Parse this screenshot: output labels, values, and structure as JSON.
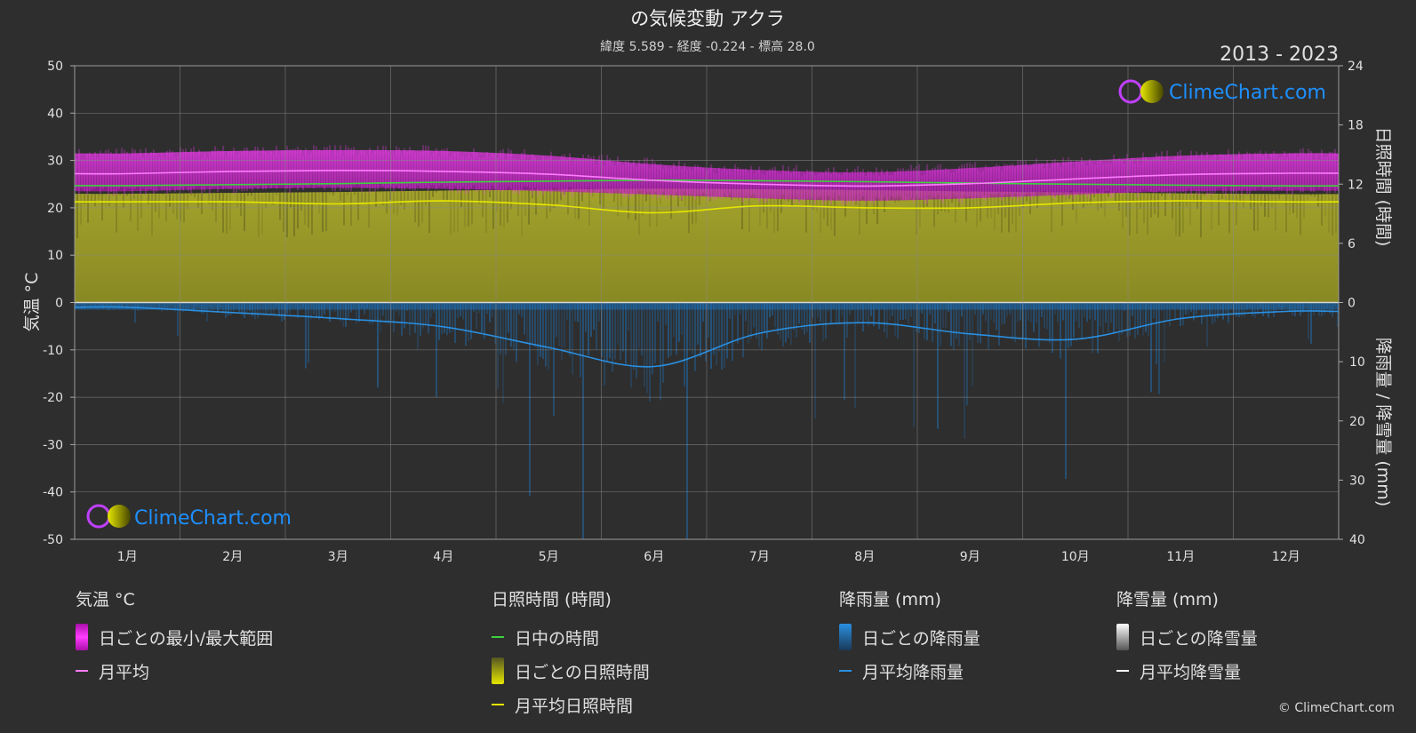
{
  "header": {
    "title": "の気候変動 アクラ",
    "subtitle": "緯度 5.589 - 経度 -0.224 - 標高 28.0",
    "period": "2013 - 2023"
  },
  "logo": {
    "text": "ClimeChart.com"
  },
  "copyright": "© ClimeChart.com",
  "colors": {
    "background": "#2e2e2e",
    "temp_range": "#d21ed2",
    "temp_mean": "#ff7bff",
    "daylight": "#3cd23c",
    "sunshine_fill": "#9a9a2a",
    "sunshine_mean": "#e6e600",
    "rain": "#1f6fb4",
    "rain_mean": "#2a8fe0",
    "snow_mean": "#ffffff",
    "logo_text": "#1e90ff"
  },
  "chart_data": {
    "type": "area",
    "title": "の気候変動 アクラ",
    "categories": [
      "1月",
      "2月",
      "3月",
      "4月",
      "5月",
      "6月",
      "7月",
      "8月",
      "9月",
      "10月",
      "11月",
      "12月"
    ],
    "axes": {
      "left": {
        "label": "気温 °C",
        "ticks": [
          "50",
          "40",
          "30",
          "20",
          "10",
          "0",
          "-10",
          "-20",
          "-30",
          "-40",
          "-50"
        ],
        "ylim": [
          -50,
          50
        ]
      },
      "right_top": {
        "label": "日照時間 (時間)",
        "ticks": [
          "24",
          "18",
          "12",
          "6",
          "0"
        ],
        "ylim": [
          0,
          24
        ]
      },
      "right_bottom": {
        "label": "降雨量 / 降雪量 (mm)",
        "ticks": [
          "0",
          "10",
          "20",
          "30",
          "40"
        ],
        "ylim": [
          0,
          40
        ]
      }
    },
    "grid": true,
    "series": [
      {
        "name": "月平均",
        "group": "気温 °C",
        "axis": "left",
        "values": [
          27.2,
          27.7,
          27.9,
          27.7,
          27.1,
          25.8,
          25.0,
          24.6,
          25.1,
          26.1,
          27.0,
          27.3
        ]
      },
      {
        "name": "日ごとの最小/最大範囲",
        "group": "気温 °C",
        "axis": "left",
        "lower": [
          23.5,
          24.0,
          24.2,
          24.0,
          23.5,
          22.8,
          22.0,
          21.5,
          22.0,
          22.8,
          23.5,
          23.6
        ],
        "upper": [
          31.5,
          32.0,
          32.2,
          32.0,
          31.0,
          29.2,
          28.0,
          27.5,
          28.4,
          29.8,
          31.0,
          31.5
        ]
      },
      {
        "name": "日中の時間",
        "group": "日照時間 (時間)",
        "axis": "right_top",
        "values": [
          11.85,
          11.95,
          12.05,
          12.2,
          12.3,
          12.4,
          12.35,
          12.25,
          12.1,
          12.0,
          11.9,
          11.82
        ]
      },
      {
        "name": "月平均日照時間",
        "group": "日照時間 (時間)",
        "axis": "right_top",
        "values": [
          10.2,
          10.2,
          10.0,
          10.3,
          9.9,
          9.1,
          9.8,
          9.6,
          9.6,
          10.1,
          10.3,
          10.2
        ]
      },
      {
        "name": "月平均降雨量",
        "group": "降雨量 (mm)",
        "axis": "right_bottom",
        "values": [
          0.8,
          1.7,
          2.7,
          4.1,
          7.6,
          10.8,
          5.2,
          3.4,
          5.3,
          6.2,
          2.7,
          1.5
        ]
      },
      {
        "name": "月平均降雪量",
        "group": "降雪量 (mm)",
        "axis": "right_bottom",
        "values": [
          0,
          0,
          0,
          0,
          0,
          0,
          0,
          0,
          0,
          0,
          0,
          0
        ]
      }
    ]
  },
  "legend": {
    "groups": [
      {
        "title": "気温 °C",
        "items": [
          {
            "label": "日ごとの最小/最大範囲"
          },
          {
            "label": "月平均"
          }
        ]
      },
      {
        "title": "日照時間 (時間)",
        "items": [
          {
            "label": "日中の時間"
          },
          {
            "label": "日ごとの日照時間"
          },
          {
            "label": "月平均日照時間"
          }
        ]
      },
      {
        "title": "降雨量 (mm)",
        "items": [
          {
            "label": "日ごとの降雨量"
          },
          {
            "label": "月平均降雨量"
          }
        ]
      },
      {
        "title": "降雪量 (mm)",
        "items": [
          {
            "label": "日ごとの降雪量"
          },
          {
            "label": "月平均降雪量"
          }
        ]
      }
    ]
  }
}
